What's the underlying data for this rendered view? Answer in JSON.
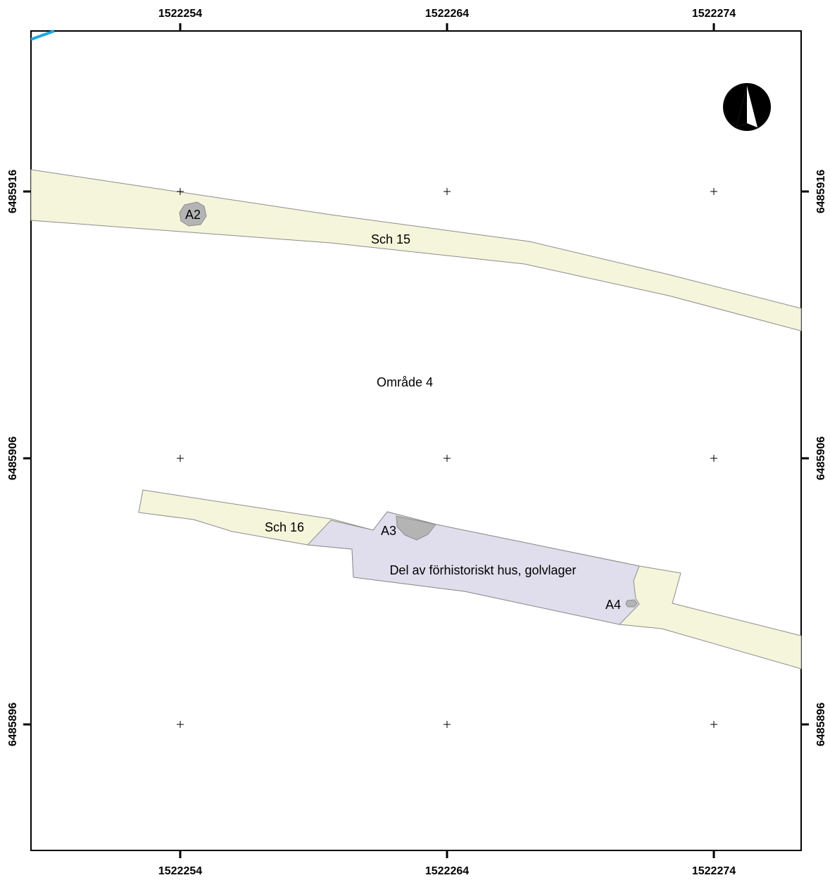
{
  "map": {
    "x_axis_labels": {
      "top": [
        "1522254",
        "1522264",
        "1522274"
      ],
      "bottom": [
        "1522254",
        "1522264",
        "1522274"
      ]
    },
    "y_axis_labels": {
      "left": [
        "6485916",
        "6485906",
        "6485896"
      ],
      "right": [
        "6485916",
        "6485906",
        "6485896"
      ]
    },
    "area_label": "Område 4",
    "trenches": [
      {
        "id": "sch15",
        "label": "Sch 15"
      },
      {
        "id": "sch16",
        "label": "Sch 16"
      }
    ],
    "house": {
      "label": "Del av förhistoriskt hus, golvlager"
    },
    "features": [
      {
        "id": "a2",
        "label": "A2"
      },
      {
        "id": "a3",
        "label": "A3"
      },
      {
        "id": "a4",
        "label": "A4"
      }
    ],
    "north_arrow": "north-arrow-icon",
    "colors": {
      "trench_fill": "#f5f5dc",
      "house_fill": "#e0deec",
      "feature_fill": "#b4b4b4",
      "outline": "#8c8c8c",
      "water_line": "#1ea7e0"
    }
  }
}
